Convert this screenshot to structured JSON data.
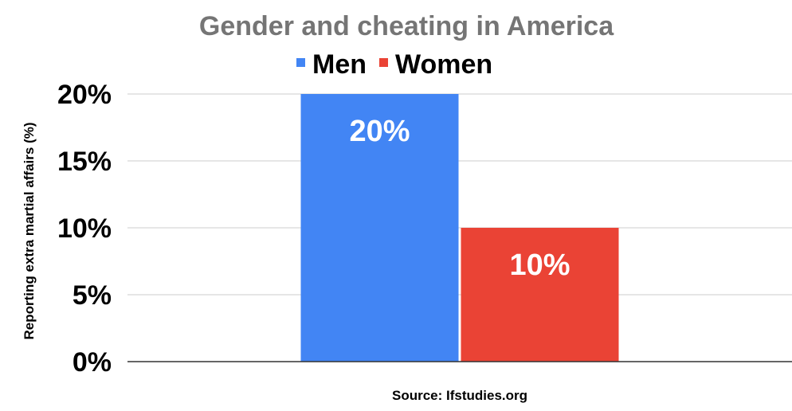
{
  "chart_data": {
    "type": "bar",
    "title": "Gender and cheating in America",
    "xlabel": "Source: Ifstudies.org",
    "ylabel": "Reporting extra martial affairs (%)",
    "categories": [
      ""
    ],
    "series": [
      {
        "name": "Men",
        "values": [
          20
        ],
        "color": "#4285f4",
        "data_label": "20%"
      },
      {
        "name": "Women",
        "values": [
          10
        ],
        "color": "#ea4335",
        "data_label": "10%"
      }
    ],
    "ylim": [
      0,
      20
    ],
    "yticks": [
      {
        "value": 0,
        "label": "0%"
      },
      {
        "value": 5,
        "label": "5%"
      },
      {
        "value": 10,
        "label": "10%"
      },
      {
        "value": 15,
        "label": "15%"
      },
      {
        "value": 20,
        "label": "20%"
      }
    ],
    "grid": true,
    "legend_position": "top"
  }
}
